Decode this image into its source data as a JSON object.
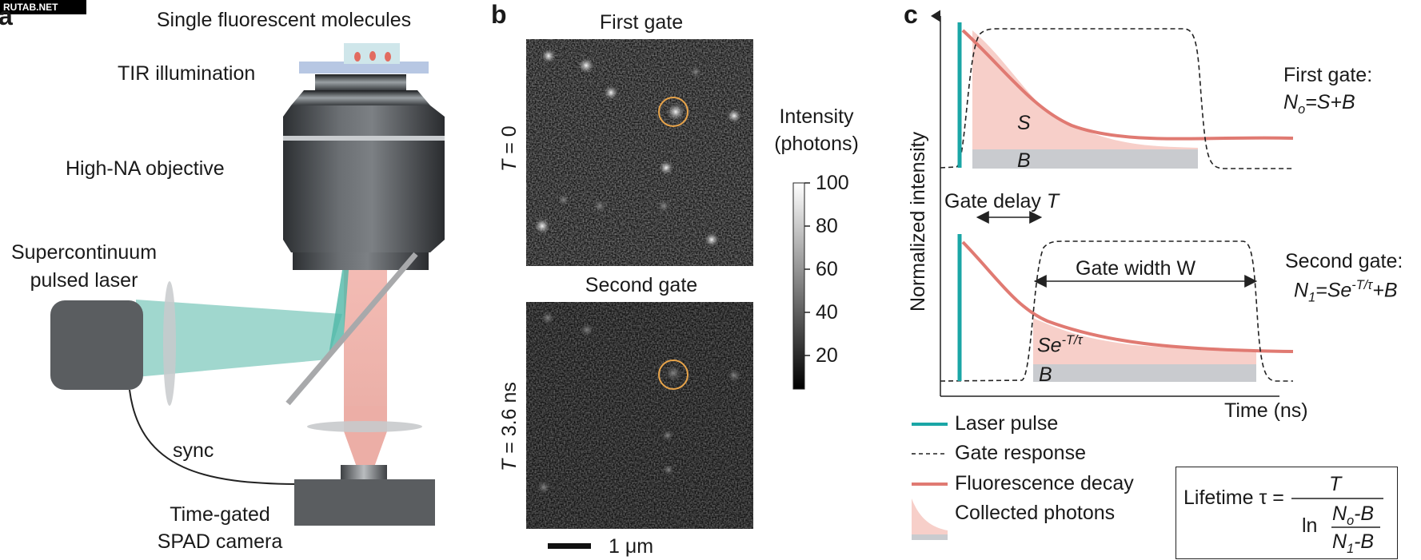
{
  "watermark": "RUTAB.NET",
  "panels": {
    "a": "a",
    "b": "b",
    "c": "c"
  },
  "panel_a": {
    "molecules": "Single fluorescent molecules",
    "tir": "TIR illumination",
    "objective": "High-NA objective",
    "laser_line1": "Supercontinuum",
    "laser_line2": "pulsed laser",
    "sync": "sync",
    "camera_line1": "Time-gated",
    "camera_line2": "SPAD camera"
  },
  "panel_b": {
    "first_gate": "First gate",
    "second_gate": "Second gate",
    "t0_var": "T",
    "t0_val": " = 0",
    "t36_var": "T",
    "t36_val": " = 3.6 ns",
    "intensity_line1": "Intensity",
    "intensity_line2": "(photons)",
    "colorbar_ticks": [
      "100",
      "80",
      "60",
      "40",
      "20"
    ],
    "scale_bar": "1 μm"
  },
  "panel_c": {
    "y_axis": "Normalized intensity",
    "x_axis": "Time (ns)",
    "S": "S",
    "B_top": "B",
    "B_bottom": "B",
    "gate_delay": "Gate delay ",
    "gate_delay_T": "T",
    "gate_width": "Gate width W",
    "se_base": "Se",
    "se_exp": "-T/τ",
    "first_gate_title": "First gate:",
    "first_gate_eq_N": "N",
    "first_gate_eq_sub": "o",
    "first_gate_eq_rest": "=S+B",
    "second_gate_title": "Second gate:",
    "second_gate_eq_N": "N",
    "second_gate_eq_sub": "1",
    "second_gate_eq_mid": "=Se",
    "second_gate_eq_exp": "-T/τ",
    "second_gate_eq_end": "+B",
    "legend": [
      "Laser pulse",
      "Gate response",
      "Fluorescence decay",
      "Collected photons"
    ],
    "formula": {
      "lhs": "Lifetime τ =",
      "num": "T",
      "ln": "ln",
      "inner_num": "N",
      "inner_num_sub": "o",
      "inner_num_rest": "-B",
      "inner_den": "N",
      "inner_den_sub": "1",
      "inner_den_rest": "-B"
    }
  },
  "colors": {
    "laser": "#1aa6a6",
    "decay": "#e07a72",
    "photons": "#f7cfc9",
    "background_band": "#c9cbcf",
    "gate_marker": "#e8a44a",
    "camera_dark": "#5a5d60"
  }
}
